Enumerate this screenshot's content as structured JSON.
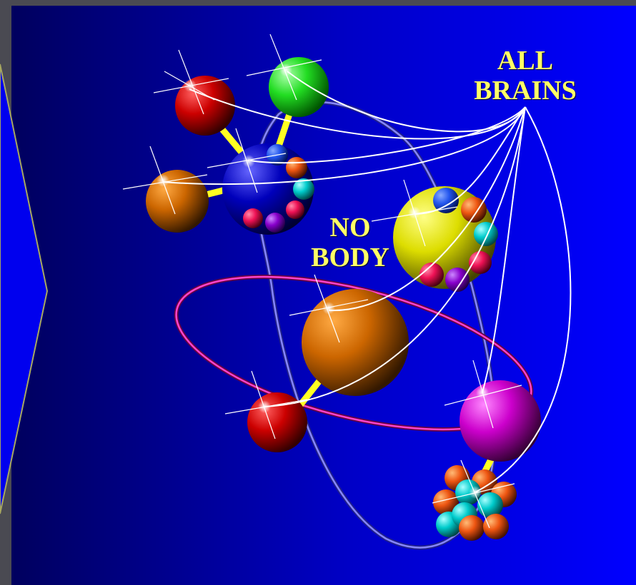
{
  "labels": {
    "all_brains": [
      "ALL",
      "BRAINS"
    ],
    "no_body": [
      "NO",
      "BODY"
    ]
  },
  "colors": {
    "background_left": "#000066",
    "background_right": "#0000ff",
    "frame": "#4a4a52",
    "label_text": "#ffff66",
    "connector": "#ffff22",
    "orbit_blue": "#8888ff",
    "orbit_magenta": "#ff44cc",
    "brain_lines": "#ffffff"
  },
  "spheres": [
    {
      "id": "red-sphere-top",
      "color": "#cc0000"
    },
    {
      "id": "green-sphere",
      "color": "#22dd22"
    },
    {
      "id": "orange-sphere-left",
      "color": "#cc6600"
    },
    {
      "id": "blue-cluster-sphere",
      "color": "#0000cc"
    },
    {
      "id": "yellow-cluster-sphere",
      "color": "#dddd00"
    },
    {
      "id": "large-orange-sphere",
      "color": "#cc6600"
    },
    {
      "id": "red-sphere-bottom",
      "color": "#cc0000"
    },
    {
      "id": "magenta-sphere",
      "color": "#cc00cc"
    },
    {
      "id": "molecule-cluster",
      "color": "#00cccc"
    }
  ]
}
